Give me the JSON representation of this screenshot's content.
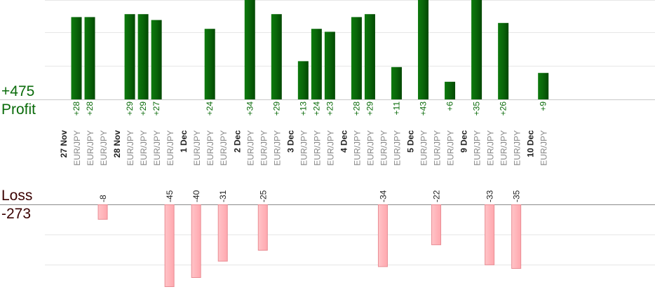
{
  "chart_data": {
    "type": "bar",
    "profit_total": "+475",
    "profit_label": "Profit",
    "loss_label": "Loss",
    "loss_total": "-273",
    "colors": {
      "profit": "#0b6b0b",
      "loss": "#ffb3b8",
      "profit_text": "#0a6b0a",
      "date_text": "#222222",
      "pair_text": "#888888"
    },
    "groups": [
      {
        "date": "27 Nov",
        "trades": [
          {
            "pair": "EUR/JPY",
            "value": 28,
            "label": "+28"
          },
          {
            "pair": "EUR/JPY",
            "value": 28,
            "label": "+28"
          },
          {
            "pair": "EUR/JPY",
            "value": -8,
            "label": "-8"
          }
        ]
      },
      {
        "date": "28 Nov",
        "trades": [
          {
            "pair": "EUR/JPY",
            "value": 29,
            "label": "+29"
          },
          {
            "pair": "EUR/JPY",
            "value": 29,
            "label": "+29"
          },
          {
            "pair": "EUR/JPY",
            "value": 27,
            "label": "+27"
          },
          {
            "pair": "EUR/JPY",
            "value": -45,
            "label": "-45"
          }
        ]
      },
      {
        "date": "1 Dec",
        "trades": [
          {
            "pair": "EUR/JPY",
            "value": -40,
            "label": "-40"
          },
          {
            "pair": "EUR/JPY",
            "value": 24,
            "label": "+24"
          },
          {
            "pair": "EUR/JPY",
            "value": -31,
            "label": "-31"
          }
        ]
      },
      {
        "date": "2 Dec",
        "trades": [
          {
            "pair": "EUR/JPY",
            "value": 34,
            "label": "+34"
          },
          {
            "pair": "EUR/JPY",
            "value": -25,
            "label": "-25"
          },
          {
            "pair": "EUR/JPY",
            "value": 29,
            "label": "+29"
          }
        ]
      },
      {
        "date": "3 Dec",
        "trades": [
          {
            "pair": "EUR/JPY",
            "value": 13,
            "label": "+13"
          },
          {
            "pair": "EUR/JPY",
            "value": 24,
            "label": "+24"
          },
          {
            "pair": "EUR/JPY",
            "value": 23,
            "label": "+23"
          }
        ]
      },
      {
        "date": "4 Dec",
        "trades": [
          {
            "pair": "EUR/JPY",
            "value": 28,
            "label": "+28"
          },
          {
            "pair": "EUR/JPY",
            "value": 29,
            "label": "+29"
          },
          {
            "pair": "EUR/JPY",
            "value": -34,
            "label": "-34"
          },
          {
            "pair": "EUR/JPY",
            "value": 11,
            "label": "+11"
          }
        ]
      },
      {
        "date": "5 Dec",
        "trades": [
          {
            "pair": "EUR/JPY",
            "value": 43,
            "label": "+43"
          },
          {
            "pair": "EUR/JPY",
            "value": -22,
            "label": "-22"
          },
          {
            "pair": "EUR/JPY",
            "value": 6,
            "label": "+6"
          }
        ]
      },
      {
        "date": "9 Dec",
        "trades": [
          {
            "pair": "EUR/JPY",
            "value": 35,
            "label": "+35"
          },
          {
            "pair": "EUR/JPY",
            "value": -33,
            "label": "-33"
          },
          {
            "pair": "EUR/JPY",
            "value": 26,
            "label": "+26"
          },
          {
            "pair": "EUR/JPY",
            "value": -35,
            "label": "-35"
          }
        ]
      },
      {
        "date": "10 Dec",
        "trades": [
          {
            "pair": "EUR/JPY",
            "value": 9,
            "label": "+9"
          }
        ]
      }
    ]
  }
}
